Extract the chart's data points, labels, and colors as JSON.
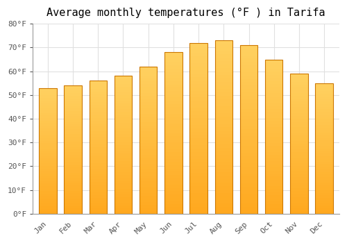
{
  "title": "Average monthly temperatures (°F ) in Tarifa",
  "months": [
    "Jan",
    "Feb",
    "Mar",
    "Apr",
    "May",
    "Jun",
    "Jul",
    "Aug",
    "Sep",
    "Oct",
    "Nov",
    "Dec"
  ],
  "values": [
    53,
    54,
    56,
    58,
    62,
    68,
    72,
    73,
    71,
    65,
    59,
    55
  ],
  "bar_color": "#FFA820",
  "bar_edge_color": "#CC7700",
  "ylim": [
    0,
    80
  ],
  "yticks": [
    0,
    10,
    20,
    30,
    40,
    50,
    60,
    70,
    80
  ],
  "ytick_labels": [
    "0°F",
    "10°F",
    "20°F",
    "30°F",
    "40°F",
    "50°F",
    "60°F",
    "70°F",
    "80°F"
  ],
  "background_color": "#ffffff",
  "plot_bg_color": "#ffffff",
  "grid_color": "#e0e0e0",
  "title_fontsize": 11,
  "tick_fontsize": 8,
  "bar_width": 0.7
}
